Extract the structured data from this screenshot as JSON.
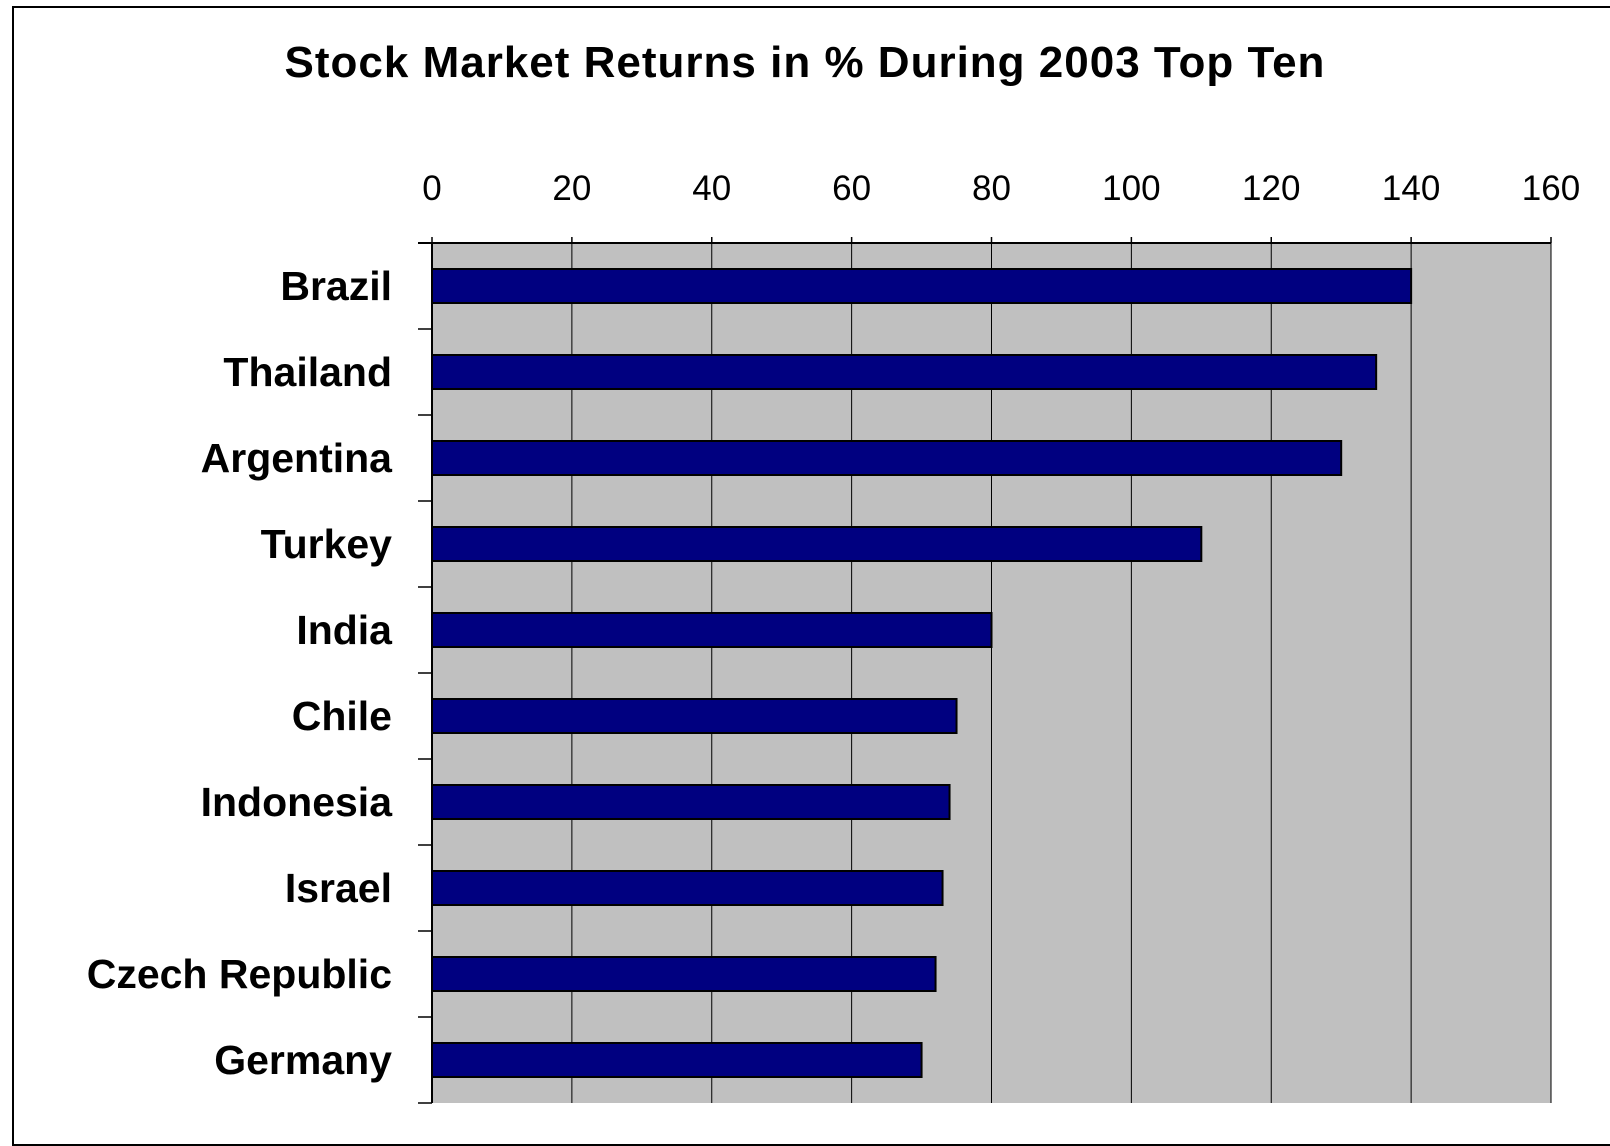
{
  "chart_data": {
    "type": "bar",
    "orientation": "horizontal",
    "title": "Stock Market Returns in % During 2003 Top Ten",
    "xlabel": "",
    "ylabel": "",
    "categories": [
      "Brazil",
      "Thailand",
      "Argentina",
      "Turkey",
      "India",
      "Chile",
      "Indonesia",
      "Israel",
      "Czech Republic",
      "Germany"
    ],
    "values": [
      140,
      135,
      130,
      110,
      80,
      75,
      74,
      73,
      72,
      70
    ],
    "xlim": [
      0,
      160
    ],
    "xticks": [
      "0",
      "20",
      "40",
      "60",
      "80",
      "100",
      "120",
      "140",
      "160"
    ],
    "x_axis_position": "top",
    "grid": true,
    "legend": "none",
    "colors": {
      "bar_fill": "#000080",
      "plot_background": "#c0c0c0",
      "grid_line": "#000000"
    }
  }
}
